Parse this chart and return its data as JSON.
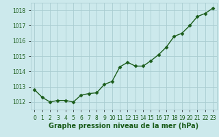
{
  "x": [
    0,
    1,
    2,
    3,
    4,
    5,
    6,
    7,
    8,
    9,
    10,
    11,
    12,
    13,
    14,
    15,
    16,
    17,
    18,
    19,
    20,
    21,
    22,
    23
  ],
  "y": [
    1012.8,
    1012.3,
    1012.0,
    1012.1,
    1012.1,
    1012.0,
    1012.45,
    1012.55,
    1012.6,
    1013.15,
    1013.35,
    1014.3,
    1014.6,
    1014.35,
    1014.35,
    1014.7,
    1015.1,
    1015.6,
    1016.3,
    1016.5,
    1017.0,
    1017.6,
    1017.8,
    1018.15
  ],
  "line_color": "#1a5c1a",
  "marker": "D",
  "markersize": 2.5,
  "linewidth": 1.0,
  "bg_color": "#cce9ec",
  "grid_color": "#aacdd1",
  "xlabel": "Graphe pression niveau de la mer (hPa)",
  "xlabel_fontsize": 7.0,
  "xlabel_color": "#1a5c1a",
  "ylabel_ticks": [
    1012,
    1013,
    1014,
    1015,
    1016,
    1017,
    1018
  ],
  "ylim": [
    1011.5,
    1018.5
  ],
  "xlim": [
    -0.5,
    23.5
  ],
  "tick_fontsize": 5.5,
  "tick_color": "#1a5c1a"
}
